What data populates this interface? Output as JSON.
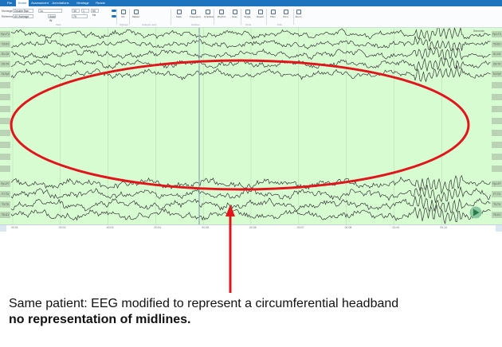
{
  "menu": {
    "tabs": [
      "File",
      "Home",
      "Assessment",
      "Annotations",
      "Montage",
      "Reads"
    ],
    "active_index": 1
  },
  "ribbon": {
    "rows": [
      {
        "label": "Montage",
        "value": "Double Ban"
      },
      {
        "label": "Reference",
        "value": "AV Average"
      }
    ],
    "filter_selects": [
      "1s",
      "30",
      "1 Hz",
      "70",
      "50 Hz",
      "Auto W"
    ],
    "buttons": [
      "DC",
      "Marker",
      "Mark",
      "Frequency",
      "Amplitude",
      "Rhythm",
      "Scan",
      "Single",
      "Reach",
      "Filter",
      "Print",
      "Zoom"
    ],
    "groups": [
      "View",
      "Settings",
      "Analysis tools",
      "Options",
      "Tools",
      "Print"
    ]
  },
  "recording": {
    "scale_label": "Seconds",
    "colors": {
      "trace_bg": "#d7fcd2",
      "trace_line": "#353535",
      "grid": "#b3d9ae",
      "cursor": "#8aa3b3",
      "channel_tag": "#b9d3b4",
      "annotation": "#e2151c",
      "accent": "#1e73be"
    },
    "channels_top": [
      "Fp1-T3",
      "T3-O1",
      "O1-O2",
      "O2-T4",
      "T4-Fp2"
    ],
    "channels_bottom": [
      "Fp1-F7",
      "F7-T3",
      "T3-T5",
      "T5-O1"
    ],
    "channels_mid_count": 8,
    "time_labels": [
      "00:01",
      "00:02",
      "00:03",
      "00:04",
      "00:05",
      "00:06",
      "00:07",
      "00:08",
      "00:09",
      "00:10"
    ],
    "play_icon": "play-icon"
  },
  "annotation": {
    "shape": "ellipse",
    "note_line1": "Same patient: EEG modified to represent a circumferential headband",
    "note_line2": "no representation of midlines."
  }
}
